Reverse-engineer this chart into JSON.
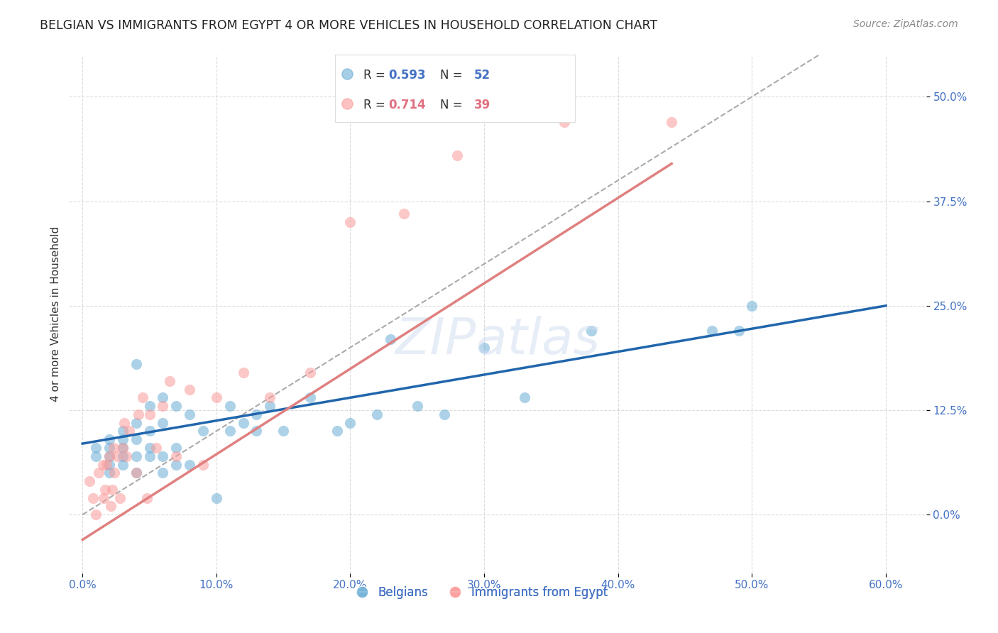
{
  "title": "BELGIAN VS IMMIGRANTS FROM EGYPT 4 OR MORE VEHICLES IN HOUSEHOLD CORRELATION CHART",
  "source": "Source: ZipAtlas.com",
  "ylabel": "4 or more Vehicles in Household",
  "xlabel_ticks": [
    0.0,
    0.1,
    0.2,
    0.3,
    0.4,
    0.5,
    0.6
  ],
  "xlabel_tick_labels": [
    "0.0%",
    "10.0%",
    "20.0%",
    "30.0%",
    "40.0%",
    "50.0%",
    "60.0%"
  ],
  "ylim": [
    -0.07,
    0.55
  ],
  "xlim": [
    -0.01,
    0.63
  ],
  "ytick_positions": [
    0.0,
    0.125,
    0.25,
    0.375,
    0.5
  ],
  "ytick_labels": [
    "0.0%",
    "12.5%",
    "25.0%",
    "37.5%",
    "50.0%"
  ],
  "blue_color": "#6baed6",
  "pink_color": "#fb9a99",
  "blue_r": 0.593,
  "blue_n": 52,
  "pink_r": 0.714,
  "pink_n": 39,
  "legend_label_blue": "Belgians",
  "legend_label_pink": "Immigrants from Egypt",
  "watermark": "ZIPatlas",
  "blue_scatter_x": [
    0.01,
    0.01,
    0.02,
    0.02,
    0.02,
    0.02,
    0.02,
    0.03,
    0.03,
    0.03,
    0.03,
    0.03,
    0.04,
    0.04,
    0.04,
    0.04,
    0.04,
    0.05,
    0.05,
    0.05,
    0.05,
    0.06,
    0.06,
    0.06,
    0.06,
    0.07,
    0.07,
    0.07,
    0.08,
    0.08,
    0.09,
    0.1,
    0.11,
    0.11,
    0.12,
    0.13,
    0.13,
    0.14,
    0.15,
    0.17,
    0.19,
    0.2,
    0.22,
    0.23,
    0.25,
    0.27,
    0.3,
    0.33,
    0.38,
    0.47,
    0.49,
    0.5
  ],
  "blue_scatter_y": [
    0.07,
    0.08,
    0.05,
    0.06,
    0.07,
    0.08,
    0.09,
    0.06,
    0.07,
    0.08,
    0.09,
    0.1,
    0.05,
    0.07,
    0.09,
    0.11,
    0.18,
    0.07,
    0.08,
    0.1,
    0.13,
    0.05,
    0.07,
    0.11,
    0.14,
    0.06,
    0.08,
    0.13,
    0.06,
    0.12,
    0.1,
    0.02,
    0.1,
    0.13,
    0.11,
    0.1,
    0.12,
    0.13,
    0.1,
    0.14,
    0.1,
    0.11,
    0.12,
    0.21,
    0.13,
    0.12,
    0.2,
    0.14,
    0.22,
    0.22,
    0.22,
    0.25
  ],
  "pink_scatter_x": [
    0.005,
    0.008,
    0.01,
    0.012,
    0.015,
    0.016,
    0.017,
    0.018,
    0.02,
    0.021,
    0.022,
    0.023,
    0.024,
    0.026,
    0.028,
    0.03,
    0.031,
    0.033,
    0.035,
    0.04,
    0.042,
    0.045,
    0.048,
    0.05,
    0.055,
    0.06,
    0.065,
    0.07,
    0.08,
    0.09,
    0.1,
    0.12,
    0.14,
    0.17,
    0.2,
    0.24,
    0.28,
    0.36,
    0.44
  ],
  "pink_scatter_y": [
    0.04,
    0.02,
    0.0,
    0.05,
    0.06,
    0.02,
    0.03,
    0.06,
    0.07,
    0.01,
    0.03,
    0.08,
    0.05,
    0.07,
    0.02,
    0.08,
    0.11,
    0.07,
    0.1,
    0.05,
    0.12,
    0.14,
    0.02,
    0.12,
    0.08,
    0.13,
    0.16,
    0.07,
    0.15,
    0.06,
    0.14,
    0.17,
    0.14,
    0.17,
    0.35,
    0.36,
    0.43,
    0.47,
    0.47
  ],
  "blue_line_x": [
    0.0,
    0.6
  ],
  "blue_line_y": [
    0.085,
    0.25
  ],
  "pink_line_x": [
    0.0,
    0.44
  ],
  "pink_line_y": [
    -0.03,
    0.42
  ],
  "diag_line_x": [
    0.0,
    0.55
  ],
  "diag_line_y": [
    0.0,
    0.55
  ],
  "title_color": "#222222",
  "axis_color": "#4472c4",
  "tick_color": "#4472c4",
  "grid_color": "#cccccc",
  "legend_text_blue": "#4472c4",
  "legend_text_pink": "#e07080"
}
